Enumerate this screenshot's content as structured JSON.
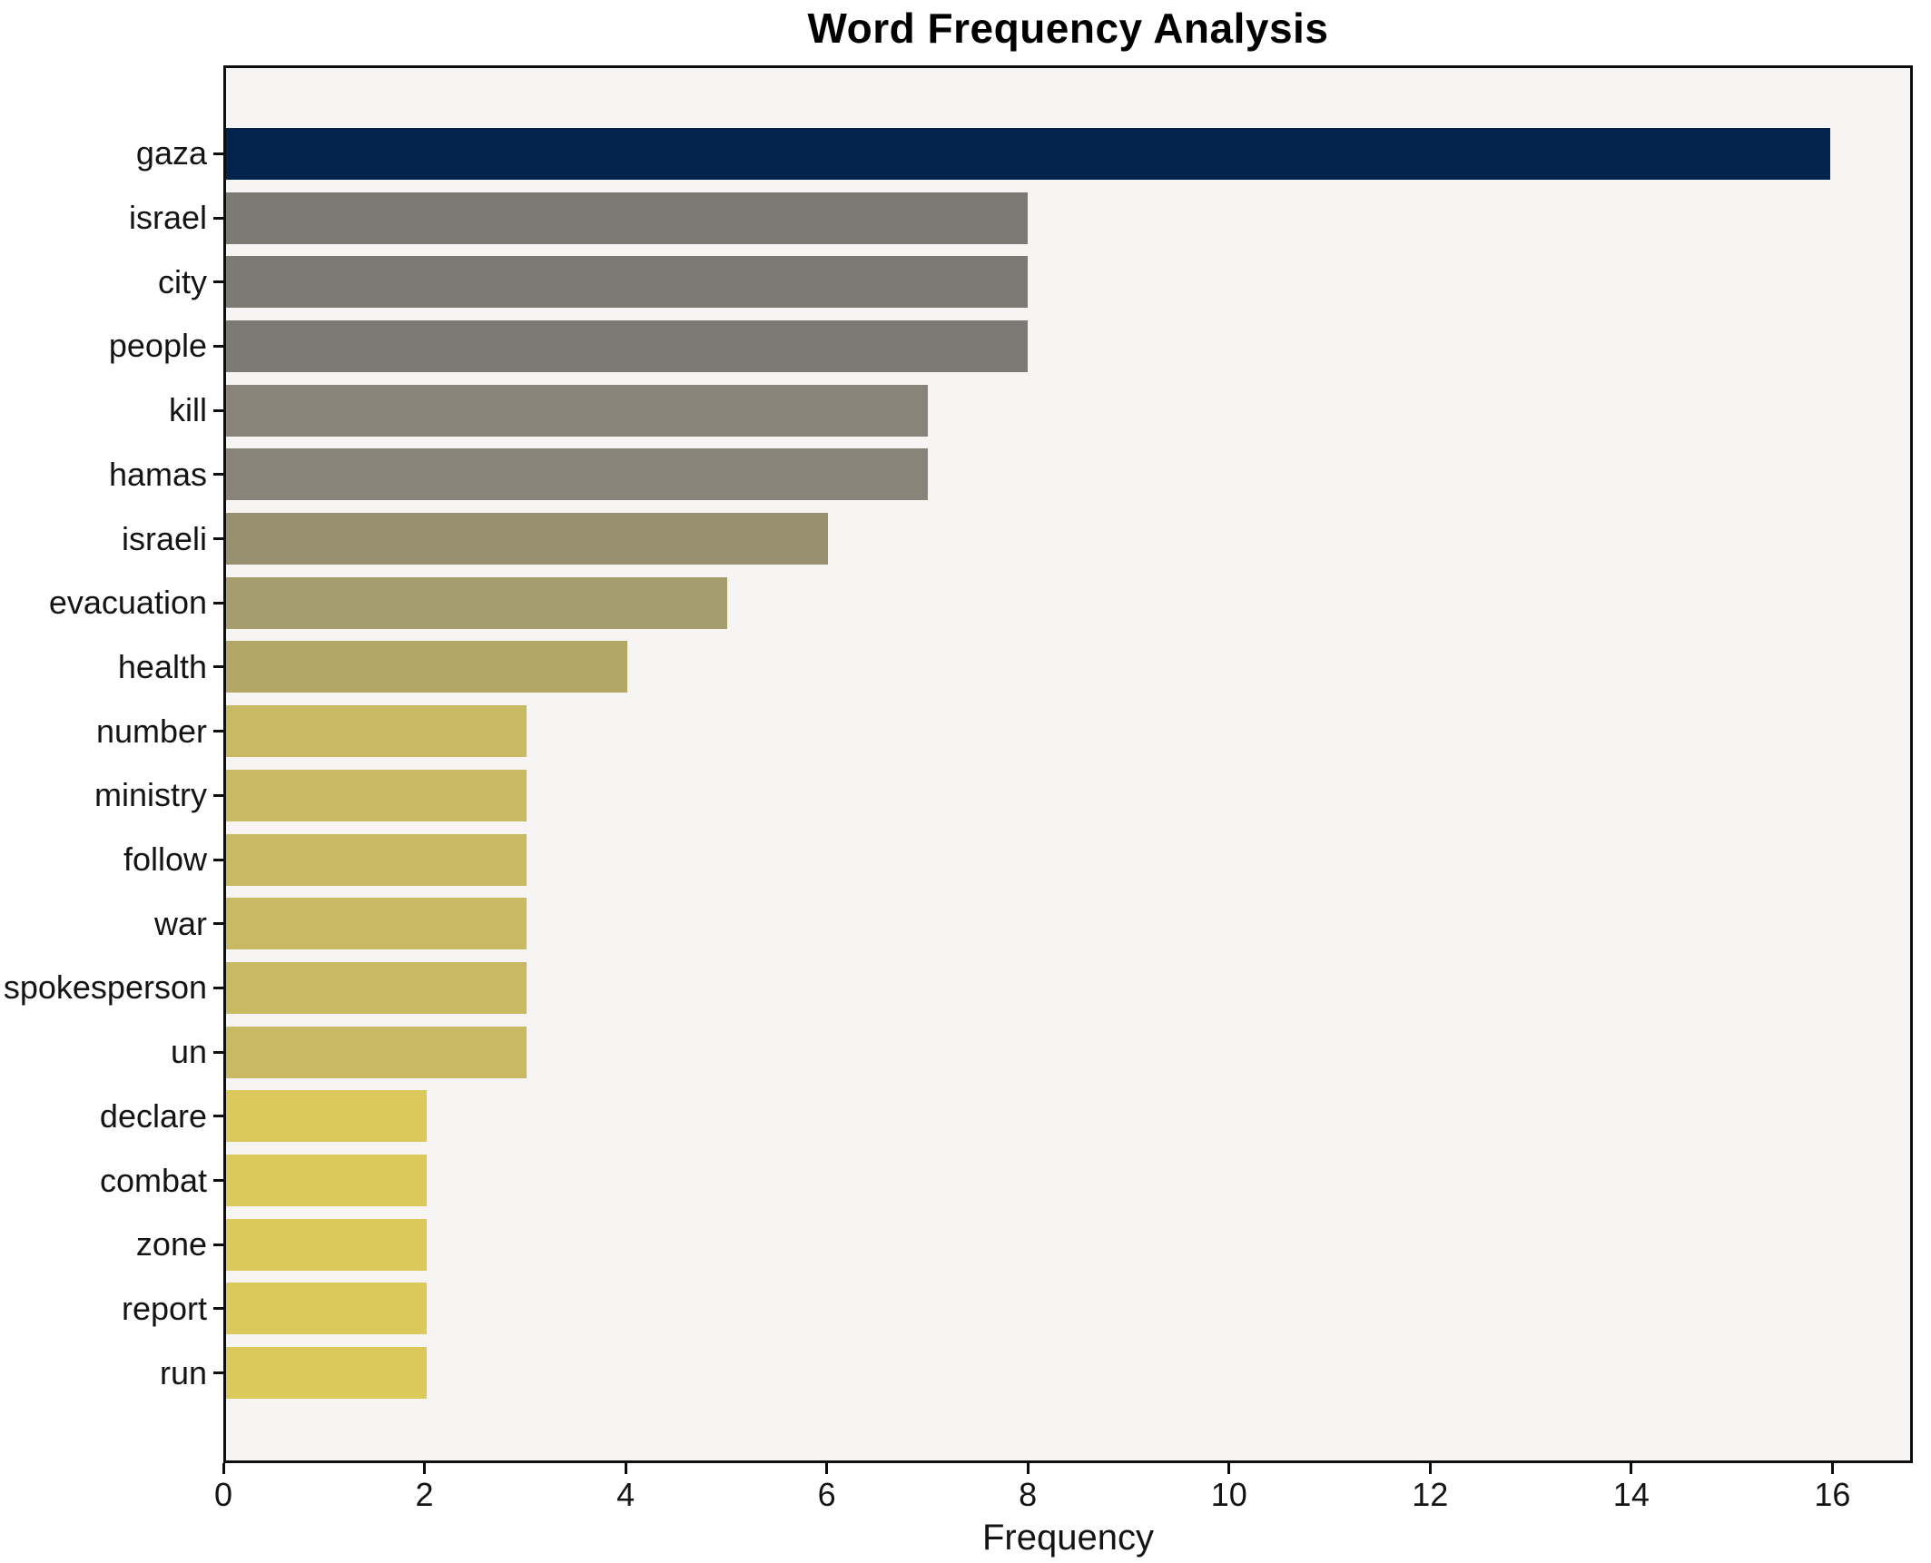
{
  "title": "Word Frequency Analysis",
  "chart_data": {
    "type": "bar",
    "orientation": "horizontal",
    "title": "Word Frequency Analysis",
    "xlabel": "Frequency",
    "ylabel": "",
    "categories": [
      "gaza",
      "israel",
      "city",
      "people",
      "kill",
      "hamas",
      "israeli",
      "evacuation",
      "health",
      "number",
      "ministry",
      "follow",
      "war",
      "spokesperson",
      "un",
      "declare",
      "combat",
      "zone",
      "report",
      "run"
    ],
    "values": [
      16,
      8,
      8,
      8,
      7,
      7,
      6,
      5,
      4,
      3,
      3,
      3,
      3,
      3,
      3,
      2,
      2,
      2,
      2,
      2
    ],
    "bar_colors": [
      "#03234d",
      "#7c7a75",
      "#7c7a75",
      "#7c7a75",
      "#88847a",
      "#88847a",
      "#98916f",
      "#a69d6e",
      "#b3a768",
      "#c8ba63",
      "#c8ba63",
      "#c8ba63",
      "#c8ba63",
      "#c8ba63",
      "#c8ba63",
      "#dcc95b",
      "#dcc95b",
      "#dcc95b",
      "#dcc95b",
      "#dcc95b"
    ],
    "x_ticks": [
      0,
      2,
      4,
      6,
      8,
      10,
      12,
      14,
      16
    ],
    "xlim": [
      0,
      16.8
    ],
    "grid": false,
    "legend": null,
    "plot_background": "#f6f5f3",
    "figure_background": "#ffffff",
    "spine_color": "#0e0e0e",
    "text_color": "#141414"
  }
}
